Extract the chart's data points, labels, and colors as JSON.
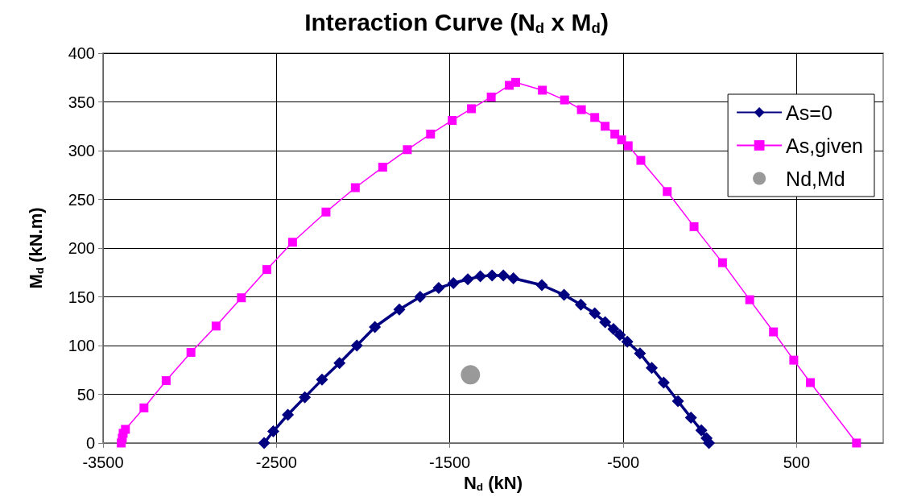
{
  "chart_data": {
    "type": "line",
    "title": "Interaction Curve (N$_{d}$ x M$_{d}$)",
    "xlabel": "N$_{d}$ (kN)",
    "ylabel": "M$_{d}$ (kN.m)",
    "xlim": [
      -3500,
      1000
    ],
    "xticks": [
      -3500,
      -2500,
      -1500,
      -500,
      500
    ],
    "ylim": [
      0,
      400
    ],
    "yticks": [
      0,
      50,
      100,
      150,
      200,
      250,
      300,
      350,
      400
    ],
    "grid": true,
    "legend": "top right",
    "line_style": "solid",
    "series": [
      {
        "name": "As=0",
        "color": "#000080",
        "marker": "diamond",
        "x": [
          -2571,
          -2518,
          -2434,
          -2336,
          -2237,
          -2136,
          -2036,
          -1932,
          -1791,
          -1671,
          -1564,
          -1479,
          -1396,
          -1324,
          -1256,
          -1191,
          -1133,
          -969,
          -841,
          -744,
          -664,
          -604,
          -556,
          -519,
          -476,
          -403,
          -335,
          -266,
          -184,
          -109,
          -49,
          -19,
          -5
        ],
        "values": [
          0,
          12,
          29,
          47,
          65,
          82,
          100,
          119,
          137,
          150,
          159,
          164,
          168,
          171,
          172,
          172,
          169,
          162,
          152,
          142,
          133,
          124,
          117,
          111,
          104,
          92,
          77,
          62,
          43,
          26,
          13,
          5,
          0
        ]
      },
      {
        "name": "As,given",
        "color": "#ff00ff",
        "marker": "square",
        "x": [
          -3395,
          -3389,
          -3384,
          -3371,
          -3264,
          -3136,
          -2993,
          -2848,
          -2702,
          -2555,
          -2407,
          -2214,
          -2045,
          -1887,
          -1745,
          -1611,
          -1486,
          -1375,
          -1261,
          -1157,
          -1120,
          -966,
          -838,
          -741,
          -664,
          -604,
          -548,
          -509,
          -471,
          -398,
          -246,
          -91,
          73,
          230,
          367,
          484,
          580,
          846
        ],
        "values": [
          0,
          5,
          10,
          14,
          36,
          64,
          93,
          120,
          149,
          178,
          206,
          237,
          262,
          283,
          301,
          317,
          331,
          343,
          355,
          367,
          370,
          362,
          352,
          342,
          334,
          325,
          317,
          311,
          305,
          290,
          258,
          222,
          185,
          147,
          114,
          85,
          62,
          0
        ]
      },
      {
        "name": "Nd,Md",
        "type": "scatter",
        "color": "#808080",
        "marker": "circle",
        "x": [
          -1381
        ],
        "values": [
          70
        ]
      }
    ]
  }
}
